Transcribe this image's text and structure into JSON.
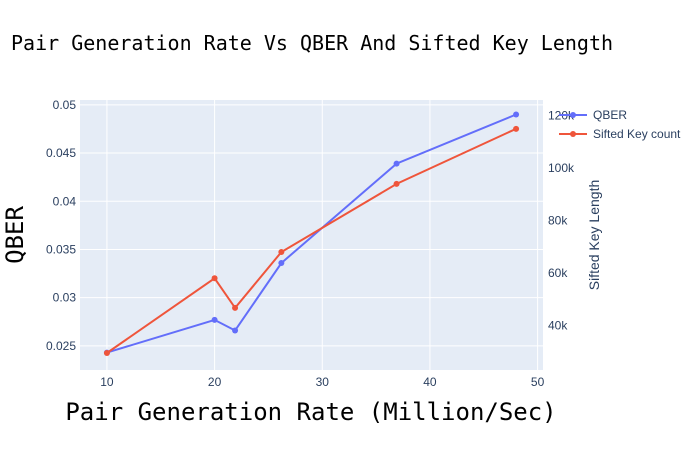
{
  "chart_data": {
    "type": "line",
    "title": "Pair Generation Rate Vs QBER And Sifted Key Length",
    "xlabel": "Pair Generation Rate (Million/Sec)",
    "ylabel": "QBER",
    "y2label": "Sifted Key Length",
    "xlim": [
      7.5,
      50.5
    ],
    "ylim": [
      0.0225,
      0.0505
    ],
    "y2lim": [
      23000,
      126000
    ],
    "x_ticks": [
      "10",
      "20",
      "30",
      "40",
      "50"
    ],
    "y_ticks": [
      "0.025",
      "0.03",
      "0.035",
      "0.04",
      "0.045",
      "0.05"
    ],
    "y2_ticks": [
      "40k",
      "60k",
      "80k",
      "100k",
      "120k"
    ],
    "grid": true,
    "legend_position": "top-right",
    "series": [
      {
        "name": "QBER",
        "axis": "y",
        "color": "#636efa",
        "x": [
          10,
          20,
          21.9,
          26.2,
          36.9,
          48
        ],
        "y": [
          0.0243,
          0.0277,
          0.0266,
          0.0336,
          0.0439,
          0.049
        ]
      },
      {
        "name": "Sifted Key count",
        "axis": "y2",
        "color": "#ef553b",
        "x": [
          10,
          20,
          21.9,
          26.2,
          36.9,
          48
        ],
        "y": [
          29500,
          58000,
          46700,
          68000,
          94000,
          115000
        ]
      }
    ]
  }
}
